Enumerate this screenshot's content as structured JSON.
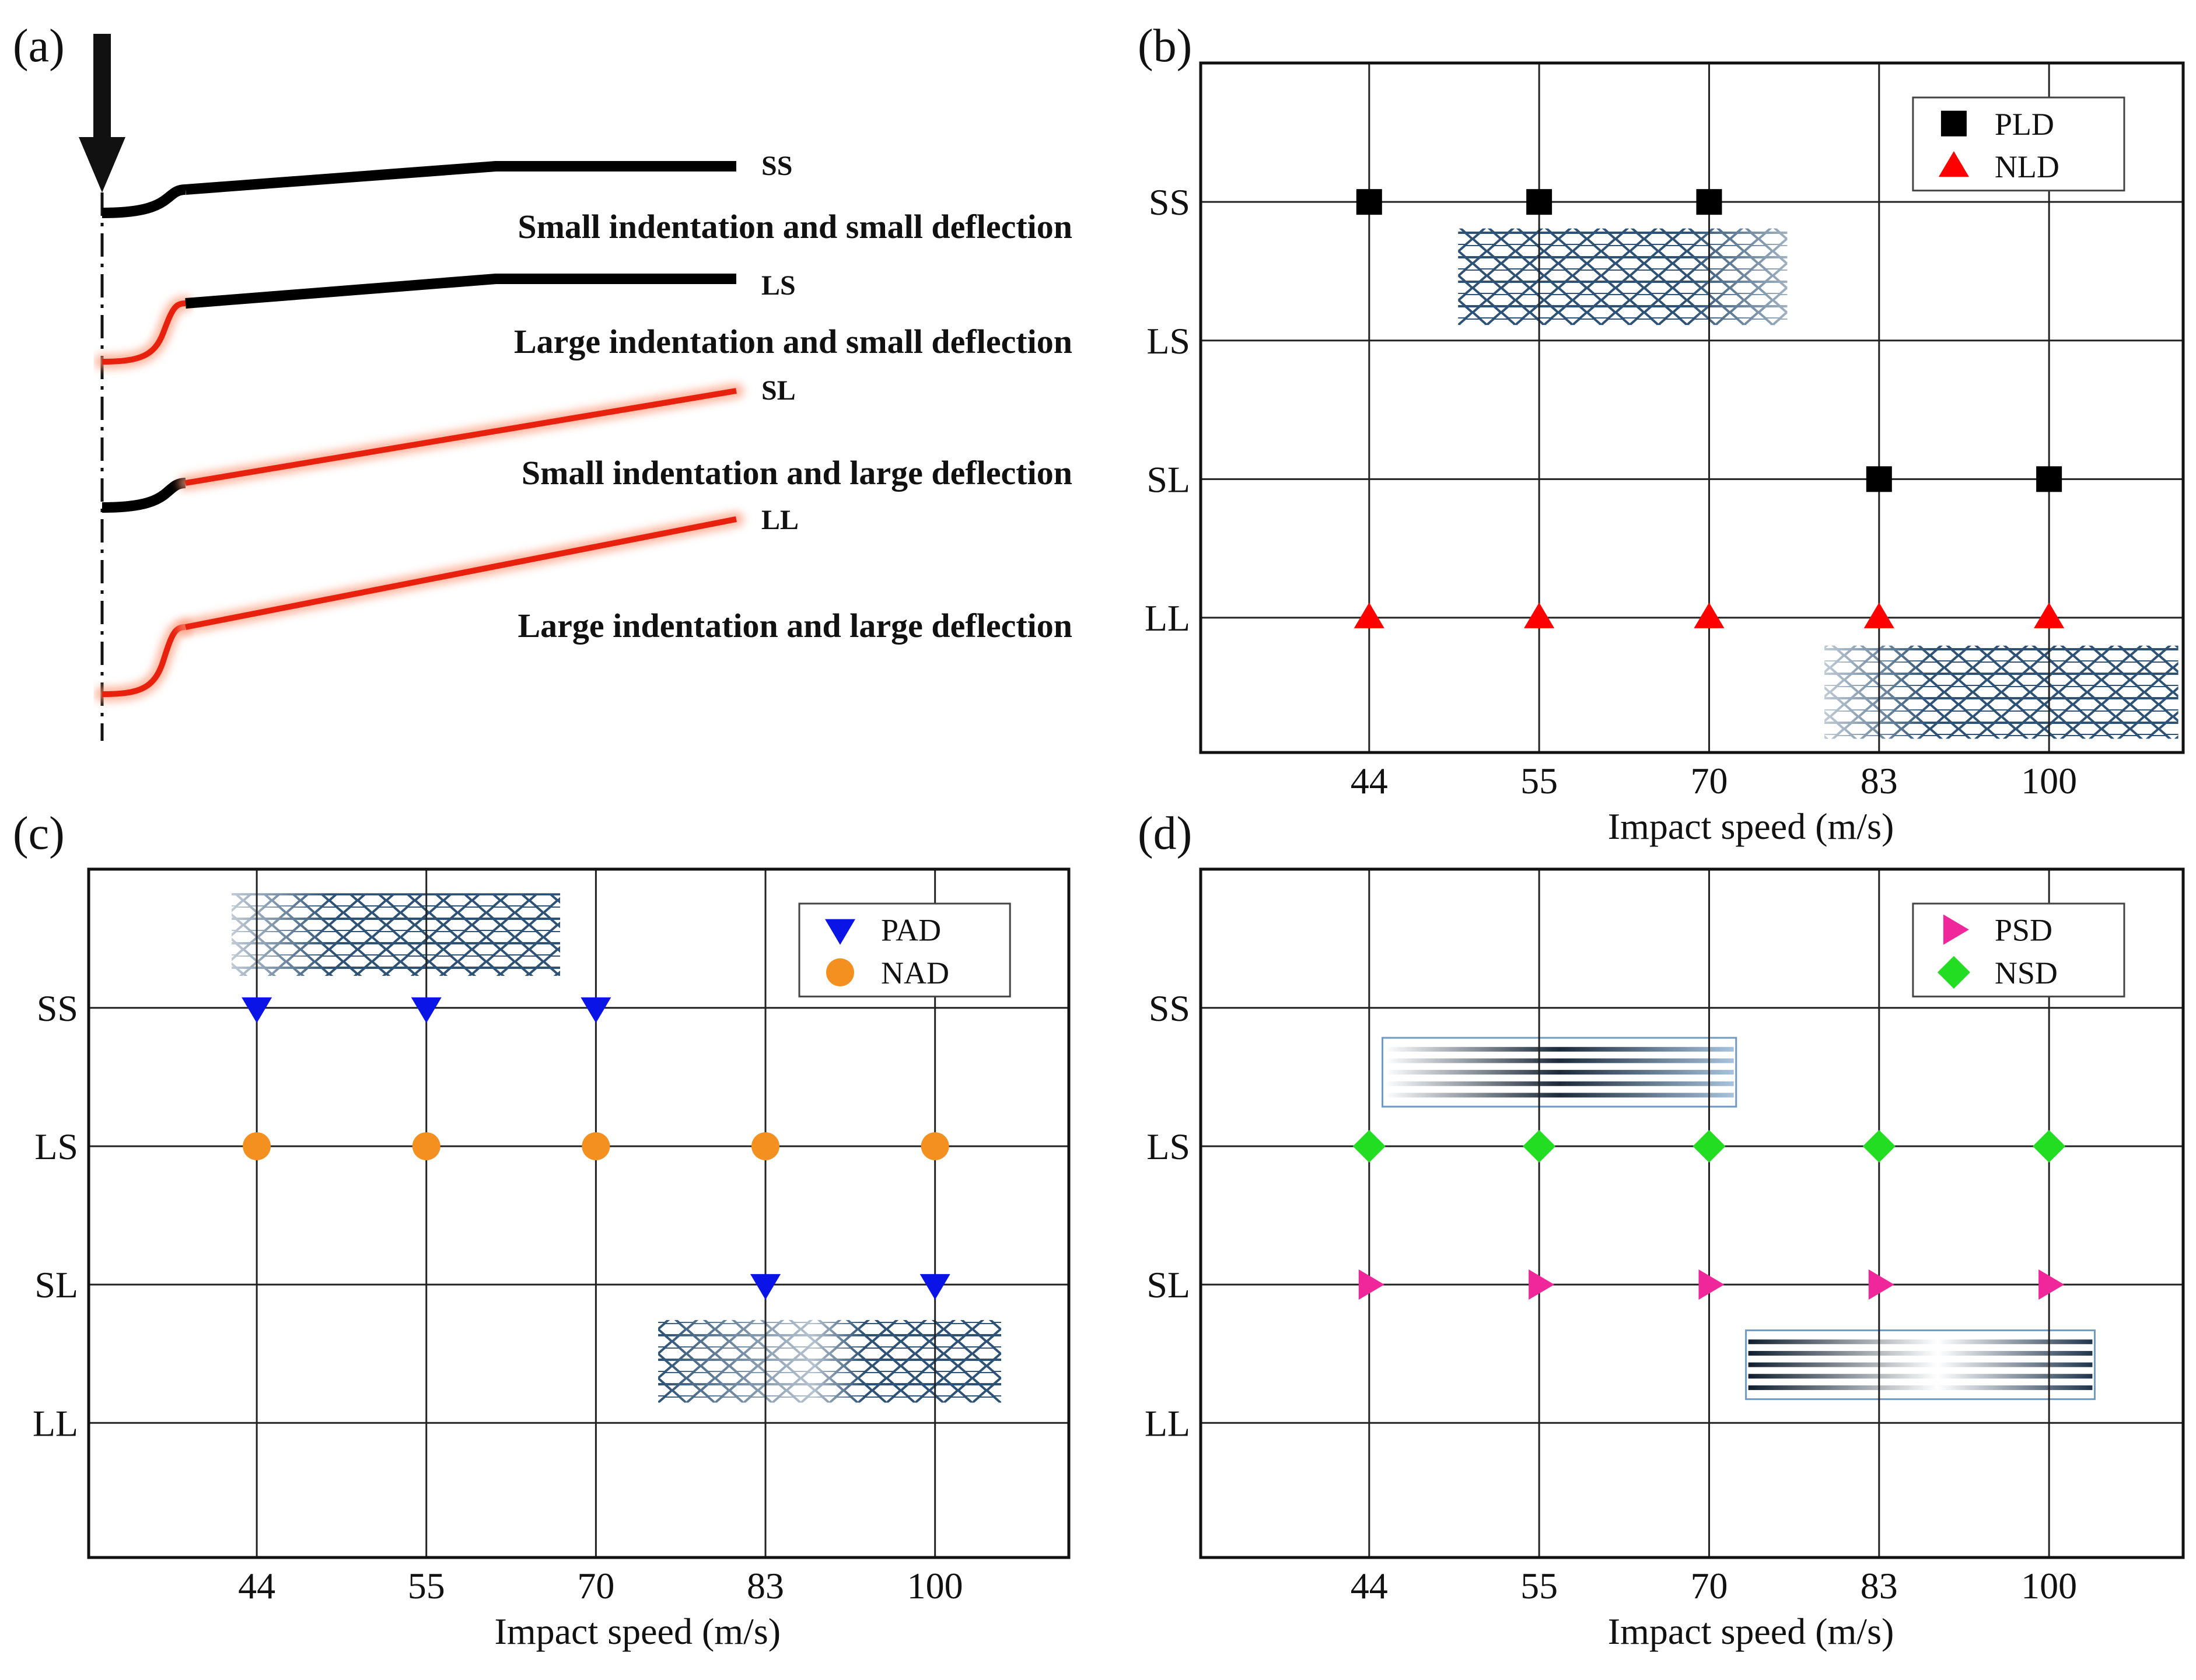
{
  "panel_labels": {
    "a": "(a)",
    "b": "(b)",
    "c": "(c)",
    "d": "(d)"
  },
  "schematic": {
    "curves": [
      {
        "tag": "SS",
        "caption": "Small indentation and small deflection",
        "indent_color": "#000000",
        "deflect_color": "#000000"
      },
      {
        "tag": "LS",
        "caption": "Large indentation and small deflection",
        "indent_color": "#e8210f",
        "deflect_color": "#000000"
      },
      {
        "tag": "SL",
        "caption": "Small indentation and large deflection",
        "indent_color": "#000000",
        "deflect_color": "#e8210f"
      },
      {
        "tag": "LL",
        "caption": "Large indentation and large deflection",
        "indent_color": "#e8210f",
        "deflect_color": "#e8210f"
      }
    ]
  },
  "chart_data": [
    {
      "type": "scatter",
      "panel": "(b)",
      "xlabel": "Impact speed (m/s)",
      "ylabel": "",
      "categories": [
        "44",
        "55",
        "70",
        "83",
        "100"
      ],
      "y_categories": [
        "SS",
        "LS",
        "SL",
        "LL"
      ],
      "grid": true,
      "legend": "top-right",
      "series": [
        {
          "name": "PLD",
          "marker": "square",
          "color": "#000000",
          "points": [
            [
              "44",
              "SS"
            ],
            [
              "55",
              "SS"
            ],
            [
              "70",
              "SS"
            ],
            [
              "83",
              "SL"
            ],
            [
              "100",
              "SL"
            ]
          ]
        },
        {
          "name": "NLD",
          "marker": "triangle-up",
          "color": "#ff0000",
          "points": [
            [
              "44",
              "LL"
            ],
            [
              "55",
              "LL"
            ],
            [
              "70",
              "LL"
            ],
            [
              "83",
              "LL"
            ],
            [
              "100",
              "LL"
            ]
          ]
        }
      ]
    },
    {
      "type": "scatter",
      "panel": "(c)",
      "xlabel": "Impact speed (m/s)",
      "ylabel": "",
      "categories": [
        "44",
        "55",
        "70",
        "83",
        "100"
      ],
      "y_categories": [
        "SS",
        "LS",
        "SL",
        "LL"
      ],
      "grid": true,
      "legend": "top-right",
      "series": [
        {
          "name": "PAD",
          "marker": "triangle-down",
          "color": "#0a14e6",
          "points": [
            [
              "44",
              "SS"
            ],
            [
              "55",
              "SS"
            ],
            [
              "70",
              "SS"
            ],
            [
              "83",
              "SL"
            ],
            [
              "100",
              "SL"
            ]
          ]
        },
        {
          "name": "NAD",
          "marker": "circle",
          "color": "#f39020",
          "points": [
            [
              "44",
              "LS"
            ],
            [
              "55",
              "LS"
            ],
            [
              "70",
              "LS"
            ],
            [
              "83",
              "LS"
            ],
            [
              "100",
              "LS"
            ]
          ]
        }
      ]
    },
    {
      "type": "scatter",
      "panel": "(d)",
      "xlabel": "Impact speed (m/s)",
      "ylabel": "",
      "categories": [
        "44",
        "55",
        "70",
        "83",
        "100"
      ],
      "y_categories": [
        "SS",
        "LS",
        "SL",
        "LL"
      ],
      "grid": true,
      "legend": "top-right",
      "series": [
        {
          "name": "PSD",
          "marker": "triangle-right",
          "color": "#f0279a",
          "points": [
            [
              "44",
              "SL"
            ],
            [
              "55",
              "SL"
            ],
            [
              "70",
              "SL"
            ],
            [
              "83",
              "SL"
            ],
            [
              "100",
              "SL"
            ]
          ]
        },
        {
          "name": "NSD",
          "marker": "diamond",
          "color": "#22dd22",
          "points": [
            [
              "44",
              "LS"
            ],
            [
              "55",
              "LS"
            ],
            [
              "70",
              "LS"
            ],
            [
              "83",
              "LS"
            ],
            [
              "100",
              "LS"
            ]
          ]
        }
      ]
    }
  ]
}
